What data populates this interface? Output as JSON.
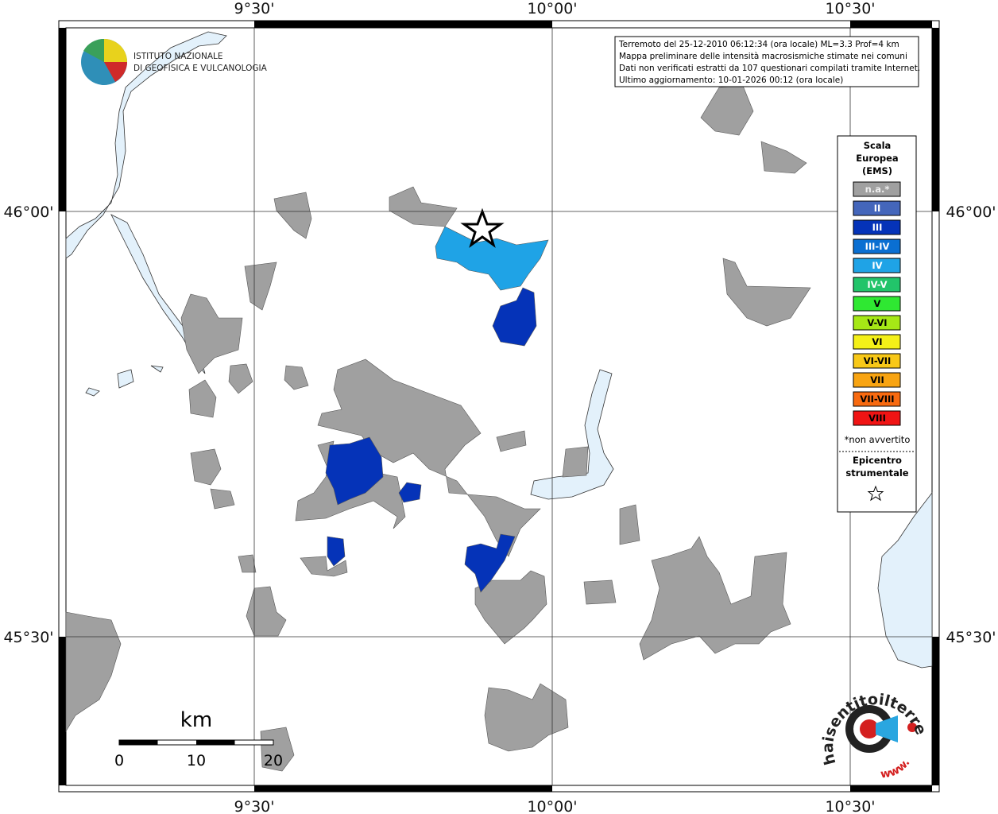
{
  "map": {
    "x_ticks": [
      "9°30'",
      "10°00'",
      "10°30'"
    ],
    "y_ticks": [
      "46°00'",
      "45°30'"
    ],
    "logo": {
      "line1": "ISTITUTO NAZIONALE",
      "line2": "DI GEOFISICA E VULCANOLOGIA"
    },
    "info": [
      "Terremoto del 25-12-2010 06:12:34 (ora locale) ML=3.3 Prof=4 km",
      "Mappa preliminare delle intensità macrosismiche stimate nei comuni",
      "Dati non verificati estratti da 107 questionari compilati tramite Internet.",
      "Ultimo aggiornamento: 10-01-2026 00:12 (ora locale)"
    ],
    "legend": {
      "title": [
        "Scala",
        "Europea",
        "(EMS)"
      ],
      "items": [
        {
          "label": "n.a.*",
          "color": "#a0a0a0"
        },
        {
          "label": "II",
          "color": "#4466bb"
        },
        {
          "label": "III",
          "color": "#0533b8"
        },
        {
          "label": "III-IV",
          "color": "#0a6fd2"
        },
        {
          "label": "IV",
          "color": "#1fa3e6"
        },
        {
          "label": "IV-V",
          "color": "#22c46a"
        },
        {
          "label": "V",
          "color": "#2fe832"
        },
        {
          "label": "V-VI",
          "color": "#a6e816"
        },
        {
          "label": "VI",
          "color": "#f4f018"
        },
        {
          "label": "VI-VII",
          "color": "#f8c818"
        },
        {
          "label": "VII",
          "color": "#f8a412"
        },
        {
          "label": "VII-VIII",
          "color": "#f86a10"
        },
        {
          "label": "VIII",
          "color": "#f01414"
        }
      ],
      "note": "*non avvertito",
      "epicenter": [
        "Epicentro",
        "strumentale"
      ]
    },
    "scale_bar": {
      "unit": "km",
      "labels": [
        "0",
        "10",
        "20"
      ]
    },
    "badge": "haisentitoilterremoto.it",
    "badge_prefix": "www."
  }
}
